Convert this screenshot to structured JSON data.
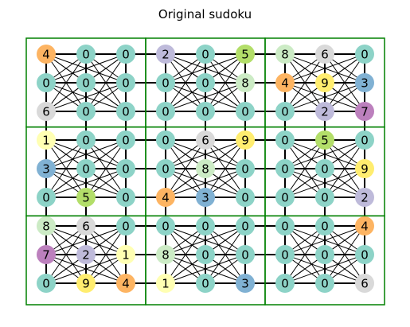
{
  "title": "Original sudoku",
  "grid": [
    [
      4,
      0,
      0,
      2,
      0,
      5,
      8,
      6,
      0
    ],
    [
      0,
      0,
      0,
      0,
      0,
      8,
      4,
      9,
      3
    ],
    [
      6,
      0,
      0,
      0,
      0,
      0,
      0,
      2,
      7
    ],
    [
      1,
      0,
      0,
      0,
      6,
      9,
      0,
      5,
      0
    ],
    [
      3,
      0,
      0,
      0,
      8,
      0,
      0,
      0,
      9
    ],
    [
      0,
      5,
      0,
      4,
      3,
      0,
      0,
      0,
      2
    ],
    [
      8,
      6,
      0,
      0,
      0,
      0,
      0,
      0,
      4
    ],
    [
      7,
      2,
      1,
      8,
      0,
      0,
      0,
      0,
      0
    ],
    [
      0,
      9,
      4,
      1,
      0,
      3,
      0,
      0,
      6
    ]
  ],
  "digit_colors": {
    "0": "#8dd3c7",
    "1": "#ffffb3",
    "2": "#bebada",
    "3": "#80b1d3",
    "4": "#fdb462",
    "5": "#b3de69",
    "6": "#d9d9d9",
    "7": "#bc80bd",
    "8": "#ccebc5",
    "9": "#ffed6f"
  },
  "edge_color": "#000000",
  "box_border_color": "#008000"
}
